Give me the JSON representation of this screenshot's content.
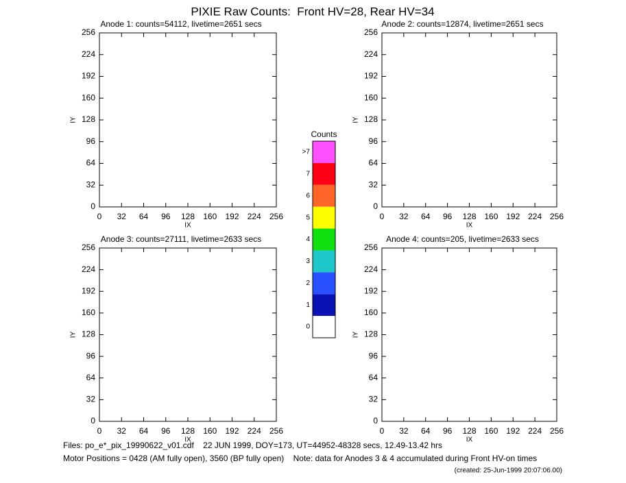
{
  "title": "PIXIE Raw Counts:  Front HV=28, Rear HV=34",
  "chart_data": [
    {
      "type": "heatmap",
      "title": "Anode 1: counts=54112, livetime=2651 secs",
      "xlabel": "IX",
      "ylabel": "IY",
      "xlim": [
        0,
        256
      ],
      "ylim": [
        0,
        256
      ],
      "xticks": [
        0,
        32,
        64,
        96,
        128,
        160,
        192,
        224,
        256
      ],
      "yticks": [
        0,
        32,
        64,
        96,
        128,
        160,
        192,
        224,
        256
      ]
    },
    {
      "type": "heatmap",
      "title": "Anode 2: counts=12874, livetime=2651 secs",
      "xlabel": "IX",
      "ylabel": "IY",
      "xlim": [
        0,
        256
      ],
      "ylim": [
        0,
        256
      ],
      "xticks": [
        0,
        32,
        64,
        96,
        128,
        160,
        192,
        224,
        256
      ],
      "yticks": [
        0,
        32,
        64,
        96,
        128,
        160,
        192,
        224,
        256
      ]
    },
    {
      "type": "heatmap",
      "title": "Anode 3: counts=27111, livetime=2633 secs",
      "xlabel": "IX",
      "ylabel": "IY",
      "xlim": [
        0,
        256
      ],
      "ylim": [
        0,
        256
      ],
      "xticks": [
        0,
        32,
        64,
        96,
        128,
        160,
        192,
        224,
        256
      ],
      "yticks": [
        0,
        32,
        64,
        96,
        128,
        160,
        192,
        224,
        256
      ]
    },
    {
      "type": "heatmap",
      "title": "Anode 4: counts=205, livetime=2633 secs",
      "xlabel": "IX",
      "ylabel": "IY",
      "xlim": [
        0,
        256
      ],
      "ylim": [
        0,
        256
      ],
      "xticks": [
        0,
        32,
        64,
        96,
        128,
        160,
        192,
        224,
        256
      ],
      "yticks": [
        0,
        32,
        64,
        96,
        128,
        160,
        192,
        224,
        256
      ]
    },
    {
      "type": "colorbar",
      "title": "Counts",
      "categories": [
        "0",
        "1",
        "2",
        "3",
        "4",
        "5",
        "6",
        "7",
        ">7"
      ],
      "colors": [
        "#ffffff",
        "#0a12b4",
        "#2850ff",
        "#1ec8c8",
        "#10e010",
        "#ffff00",
        "#ff6428",
        "#ff0014",
        "#ff50ff"
      ]
    }
  ],
  "footer": [
    "Files: po_e*_pix_19990622_v01.cdf    22 JUN 1999, DOY=173, UT=44952-48328 secs, 12.49-13.42 hrs",
    "Motor Positions = 0428 (AM fully open), 3560 (BP fully open)    Note: data for Anodes 3 & 4 accumulated during Front HV-on times",
    "(created: 25-Jun-1999 20:07:06.00)"
  ]
}
